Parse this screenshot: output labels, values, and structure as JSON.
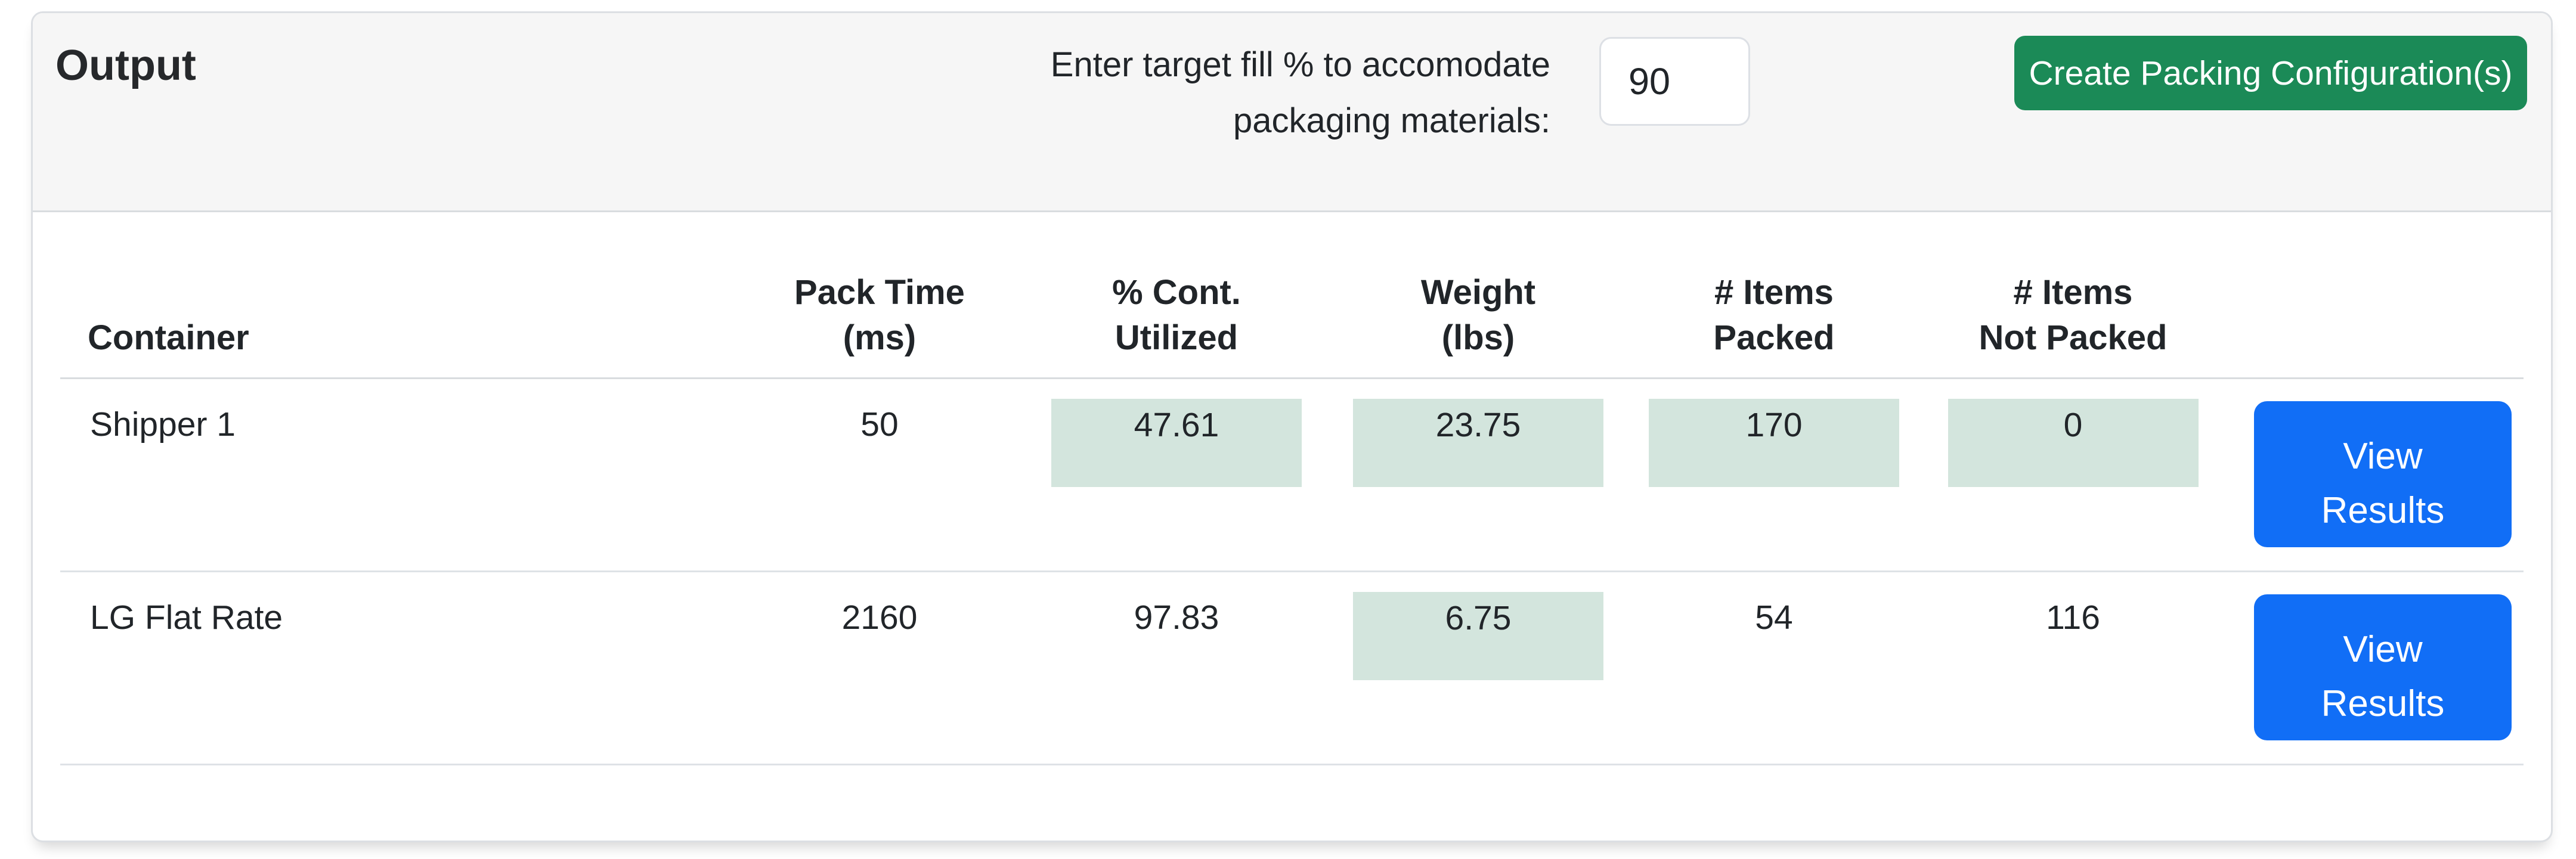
{
  "card": {
    "title": "Output",
    "header": {
      "fill_label_line1": "Enter target fill % to accomodate",
      "fill_label_line2": "packaging materials:",
      "fill_input_value": "90",
      "create_button_label": "Create Packing Configuration(s)"
    },
    "table": {
      "columns": [
        {
          "line1": "Container",
          "line2": ""
        },
        {
          "line1": "Pack Time",
          "line2": "(ms)"
        },
        {
          "line1": "% Cont.",
          "line2": "Utilized"
        },
        {
          "line1": "Weight",
          "line2": "(lbs)"
        },
        {
          "line1": "# Items",
          "line2": "Packed"
        },
        {
          "line1": "# Items",
          "line2": "Not Packed"
        },
        {
          "line1": "",
          "line2": ""
        }
      ],
      "rows": [
        {
          "container": "Shipper 1",
          "pack_time_ms": "50",
          "pct_cont_utilized": "47.61",
          "weight_lbs": "23.75",
          "items_packed": "170",
          "items_not_packed": "0",
          "highlighted_columns": [
            "pct_cont_utilized",
            "weight_lbs",
            "items_packed",
            "items_not_packed"
          ],
          "action_label": "View Results"
        },
        {
          "container": "LG Flat Rate",
          "pack_time_ms": "2160",
          "pct_cont_utilized": "97.83",
          "weight_lbs": "6.75",
          "items_packed": "54",
          "items_not_packed": "116",
          "highlighted_columns": [
            "weight_lbs"
          ],
          "action_label": "View Results"
        }
      ]
    }
  },
  "colors": {
    "create_button_green": "#1b8a57",
    "view_button_blue": "#116ef6",
    "highlight_green": "#d3e5dd",
    "header_background": "#f6f6f6",
    "border_gray": "#dee2e6",
    "text": "#212529"
  }
}
